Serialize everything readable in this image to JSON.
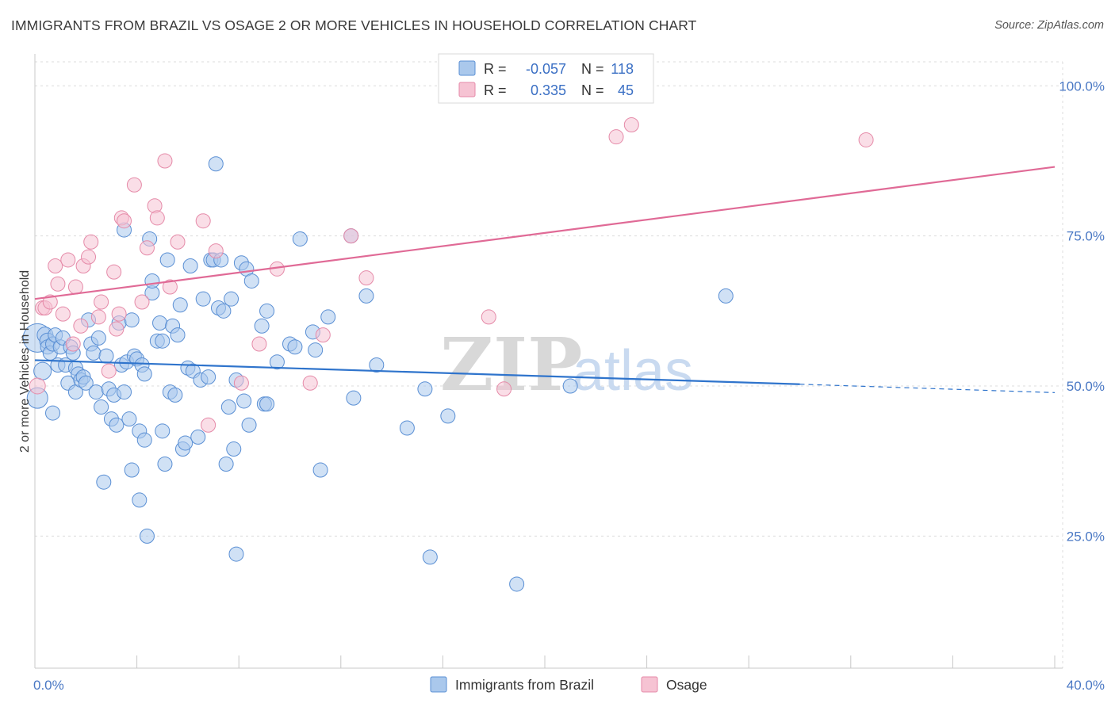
{
  "title": "IMMIGRANTS FROM BRAZIL VS OSAGE 2 OR MORE VEHICLES IN HOUSEHOLD CORRELATION CHART",
  "source": "Source: ZipAtlas.com",
  "watermark": {
    "zip": "ZIP",
    "atlas": "atlas"
  },
  "colors": {
    "blue_fill": "#aac8ec",
    "blue_stroke": "#5a8fd4",
    "blue_line": "#2f74cc",
    "pink_fill": "#f6c3d3",
    "pink_stroke": "#e58aa8",
    "pink_line": "#e06a96",
    "tick_text": "#4a78c4"
  },
  "legend": {
    "rows": [
      {
        "r_label": "R =",
        "r_value": "-0.057",
        "n_label": "N =",
        "n_value": "118"
      },
      {
        "r_label": "R =",
        "r_value": "0.335",
        "n_label": "N =",
        "n_value": "45"
      }
    ]
  },
  "bottom_legend": [
    "Immigrants from Brazil",
    "Osage"
  ],
  "chart_data": {
    "type": "scatter",
    "title": "IMMIGRANTS FROM BRAZIL VS OSAGE 2 OR MORE VEHICLES IN HOUSEHOLD CORRELATION CHART",
    "xlabel": "",
    "ylabel": "2 or more Vehicles in Household",
    "xlim": [
      0,
      40
    ],
    "ylim": [
      3,
      104
    ],
    "x_tick_labels": [
      "0.0%",
      "40.0%"
    ],
    "y_ticks": [
      25,
      50,
      75,
      100
    ],
    "y_tick_labels": [
      "25.0%",
      "50.0%",
      "75.0%",
      "100.0%"
    ],
    "grid": true,
    "legend_position": "top-center",
    "series": [
      {
        "name": "Immigrants from Brazil",
        "r": -0.057,
        "n": 118,
        "trend": {
          "x0": 0,
          "y0": 54.3,
          "x1": 30,
          "y1": 50.3,
          "dashed_to_x": 40,
          "dashed_to_y": 48.9
        },
        "points": [
          [
            0.1,
            58.0,
            18
          ],
          [
            0.1,
            48.0,
            13
          ],
          [
            0.3,
            52.5,
            11
          ],
          [
            0.4,
            58.5,
            10
          ],
          [
            0.5,
            57.5,
            10
          ],
          [
            0.5,
            56.5,
            9
          ],
          [
            0.6,
            55.5,
            9
          ],
          [
            0.7,
            45.5,
            9
          ],
          [
            0.7,
            57.0,
            9
          ],
          [
            0.8,
            58.5,
            9
          ],
          [
            0.9,
            53.5,
            9
          ],
          [
            1.0,
            56.5,
            9
          ],
          [
            1.1,
            58.0,
            9
          ],
          [
            1.2,
            53.5,
            9
          ],
          [
            1.3,
            50.5,
            9
          ],
          [
            1.4,
            56.5,
            9
          ],
          [
            1.5,
            55.5,
            9
          ],
          [
            1.6,
            49.0,
            9
          ],
          [
            1.6,
            53.0,
            9
          ],
          [
            1.7,
            52.0,
            9
          ],
          [
            1.8,
            51.0,
            9
          ],
          [
            1.9,
            51.5,
            9
          ],
          [
            2.0,
            50.5,
            9
          ],
          [
            2.1,
            61.0,
            9
          ],
          [
            2.2,
            57.0,
            9
          ],
          [
            2.3,
            55.5,
            9
          ],
          [
            2.4,
            49.0,
            9
          ],
          [
            2.5,
            58.0,
            9
          ],
          [
            2.6,
            46.5,
            9
          ],
          [
            2.7,
            34.0,
            9
          ],
          [
            2.8,
            55.0,
            9
          ],
          [
            2.9,
            49.5,
            9
          ],
          [
            3.0,
            44.5,
            9
          ],
          [
            3.1,
            48.5,
            9
          ],
          [
            3.2,
            43.5,
            9
          ],
          [
            3.3,
            60.5,
            9
          ],
          [
            3.4,
            53.5,
            9
          ],
          [
            3.5,
            49.0,
            9
          ],
          [
            3.5,
            76.0,
            9
          ],
          [
            3.6,
            54.0,
            9
          ],
          [
            3.7,
            44.5,
            9
          ],
          [
            3.8,
            61.0,
            9
          ],
          [
            3.8,
            36.0,
            9
          ],
          [
            3.9,
            55.0,
            9
          ],
          [
            4.0,
            54.5,
            9
          ],
          [
            4.1,
            42.5,
            9
          ],
          [
            4.1,
            31.0,
            9
          ],
          [
            4.2,
            53.5,
            9
          ],
          [
            4.3,
            41.0,
            9
          ],
          [
            4.3,
            52.0,
            9
          ],
          [
            4.4,
            25.0,
            9
          ],
          [
            4.5,
            74.5,
            9
          ],
          [
            4.6,
            65.5,
            9
          ],
          [
            4.6,
            67.5,
            9
          ],
          [
            4.8,
            57.5,
            9
          ],
          [
            4.9,
            60.5,
            9
          ],
          [
            5.0,
            42.5,
            9
          ],
          [
            5.0,
            57.5,
            9
          ],
          [
            5.1,
            37.0,
            9
          ],
          [
            5.2,
            71.0,
            9
          ],
          [
            5.3,
            49.0,
            9
          ],
          [
            5.4,
            60.0,
            9
          ],
          [
            5.5,
            48.5,
            9
          ],
          [
            5.6,
            58.5,
            9
          ],
          [
            5.7,
            63.5,
            9
          ],
          [
            5.8,
            39.5,
            9
          ],
          [
            5.9,
            40.5,
            9
          ],
          [
            6.0,
            53.0,
            9
          ],
          [
            6.1,
            70.0,
            9
          ],
          [
            6.2,
            52.5,
            9
          ],
          [
            6.4,
            41.5,
            9
          ],
          [
            6.5,
            51.0,
            9
          ],
          [
            6.6,
            64.5,
            9
          ],
          [
            6.8,
            51.5,
            9
          ],
          [
            6.9,
            71.0,
            9
          ],
          [
            7.0,
            71.0,
            9
          ],
          [
            7.1,
            87.0,
            9
          ],
          [
            7.2,
            63.0,
            9
          ],
          [
            7.3,
            71.0,
            9
          ],
          [
            7.4,
            62.5,
            9
          ],
          [
            7.5,
            37.0,
            9
          ],
          [
            7.6,
            46.5,
            9
          ],
          [
            7.7,
            64.5,
            9
          ],
          [
            7.8,
            39.5,
            9
          ],
          [
            7.9,
            22.0,
            9
          ],
          [
            7.9,
            51.0,
            9
          ],
          [
            8.1,
            70.5,
            9
          ],
          [
            8.2,
            47.5,
            9
          ],
          [
            8.3,
            69.5,
            9
          ],
          [
            8.4,
            43.5,
            9
          ],
          [
            8.5,
            67.5,
            9
          ],
          [
            8.9,
            60.0,
            9
          ],
          [
            9.0,
            47.0,
            9
          ],
          [
            9.1,
            47.0,
            9
          ],
          [
            9.1,
            62.5,
            9
          ],
          [
            9.5,
            54.0,
            9
          ],
          [
            10.0,
            57.0,
            9
          ],
          [
            10.2,
            56.5,
            9
          ],
          [
            10.4,
            74.5,
            9
          ],
          [
            10.9,
            59.0,
            9
          ],
          [
            11.0,
            56.0,
            9
          ],
          [
            11.2,
            36.0,
            9
          ],
          [
            11.5,
            61.5,
            9
          ],
          [
            12.4,
            75.0,
            9
          ],
          [
            12.5,
            48.0,
            9
          ],
          [
            13.0,
            65.0,
            9
          ],
          [
            13.4,
            53.5,
            9
          ],
          [
            14.6,
            43.0,
            9
          ],
          [
            15.3,
            49.5,
            9
          ],
          [
            15.5,
            21.5,
            9
          ],
          [
            16.2,
            45.0,
            9
          ],
          [
            18.9,
            17.0,
            9
          ],
          [
            21.0,
            50.0,
            9
          ],
          [
            27.1,
            65.0,
            9
          ]
        ]
      },
      {
        "name": "Osage",
        "r": 0.335,
        "n": 45,
        "trend": {
          "x0": 0,
          "y0": 64.5,
          "x1": 40,
          "y1": 86.5
        },
        "points": [
          [
            0.1,
            50.0,
            10
          ],
          [
            0.3,
            63.0,
            9
          ],
          [
            0.4,
            63.0,
            9
          ],
          [
            0.6,
            64.0,
            9
          ],
          [
            0.8,
            70.0,
            9
          ],
          [
            0.9,
            67.0,
            9
          ],
          [
            1.1,
            62.0,
            9
          ],
          [
            1.3,
            71.0,
            9
          ],
          [
            1.5,
            57.0,
            9
          ],
          [
            1.6,
            66.5,
            9
          ],
          [
            1.8,
            60.0,
            9
          ],
          [
            1.9,
            70.0,
            9
          ],
          [
            2.1,
            71.5,
            9
          ],
          [
            2.2,
            74.0,
            9
          ],
          [
            2.5,
            61.5,
            9
          ],
          [
            2.6,
            64.0,
            9
          ],
          [
            2.9,
            52.5,
            9
          ],
          [
            3.1,
            69.0,
            9
          ],
          [
            3.2,
            59.5,
            9
          ],
          [
            3.3,
            62.0,
            9
          ],
          [
            3.4,
            78.0,
            9
          ],
          [
            3.5,
            77.5,
            9
          ],
          [
            3.9,
            83.5,
            9
          ],
          [
            4.2,
            64.0,
            9
          ],
          [
            4.4,
            73.0,
            9
          ],
          [
            4.7,
            80.0,
            9
          ],
          [
            4.8,
            78.0,
            9
          ],
          [
            5.1,
            87.5,
            9
          ],
          [
            5.3,
            66.5,
            9
          ],
          [
            5.6,
            74.0,
            9
          ],
          [
            6.8,
            43.5,
            9
          ],
          [
            6.6,
            77.5,
            9
          ],
          [
            7.1,
            72.5,
            9
          ],
          [
            8.1,
            50.5,
            9
          ],
          [
            8.8,
            57.0,
            9
          ],
          [
            9.5,
            69.5,
            9
          ],
          [
            10.8,
            50.5,
            9
          ],
          [
            11.3,
            58.5,
            9
          ],
          [
            12.4,
            75.0,
            9
          ],
          [
            13.0,
            68.0,
            9
          ],
          [
            17.8,
            61.5,
            9
          ],
          [
            18.4,
            49.5,
            9
          ],
          [
            22.8,
            91.5,
            9
          ],
          [
            23.4,
            93.5,
            9
          ],
          [
            32.6,
            91.0,
            9
          ]
        ]
      }
    ]
  }
}
